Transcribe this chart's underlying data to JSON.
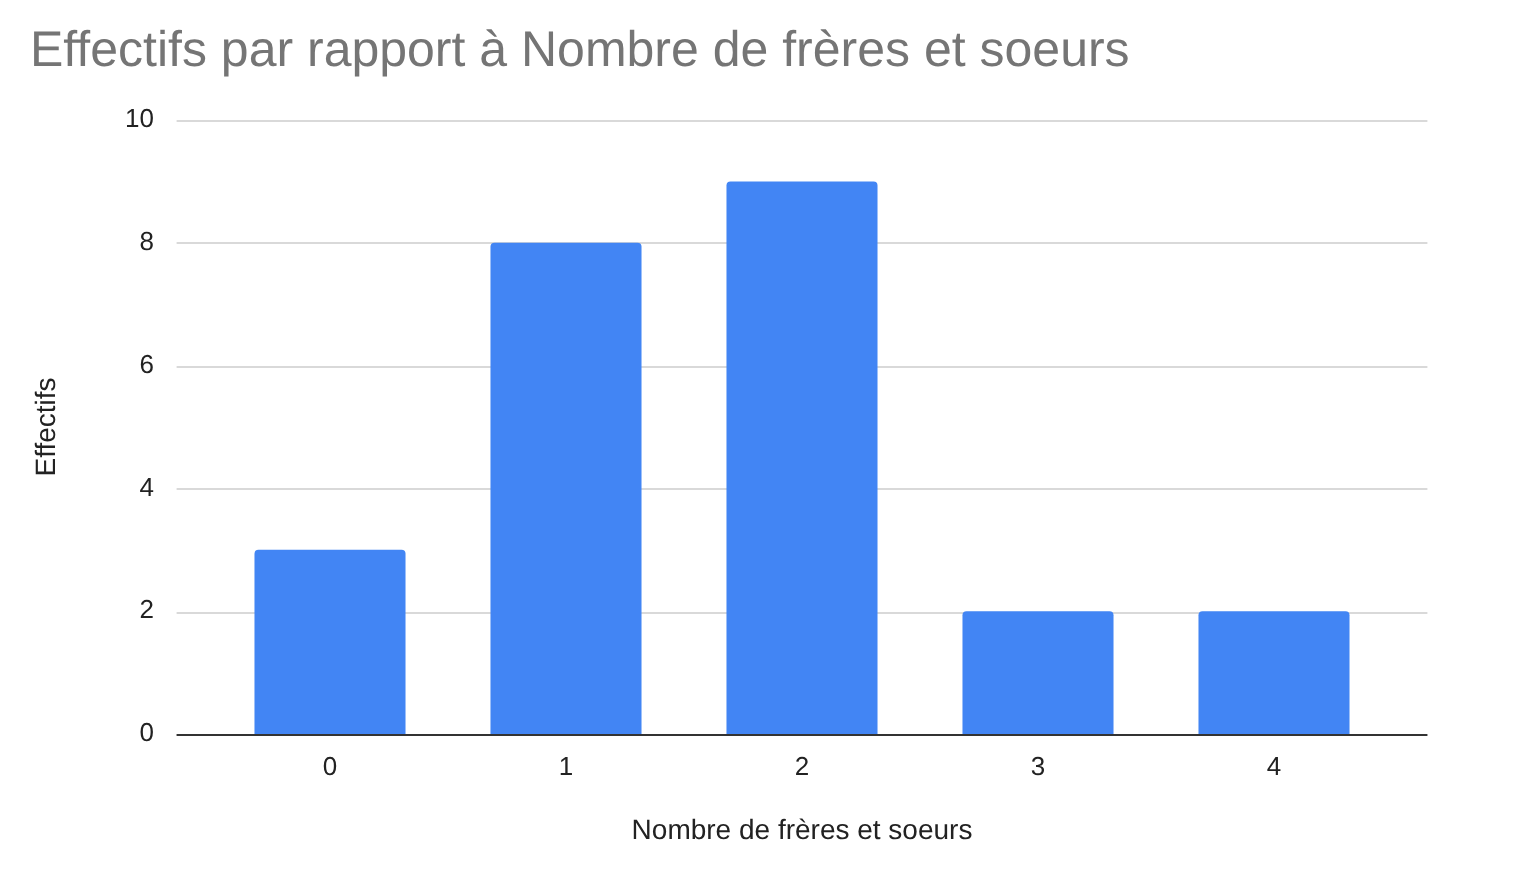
{
  "chart_data": {
    "type": "bar",
    "title": "Effectifs par rapport à Nombre de frères et soeurs",
    "xlabel": "Nombre de frères et soeurs",
    "ylabel": "Effectifs",
    "categories": [
      "0",
      "1",
      "2",
      "3",
      "4"
    ],
    "values": [
      3,
      8,
      9,
      2,
      2
    ],
    "color": "#4285f4",
    "ylim": [
      0,
      10
    ],
    "yticks": [
      0,
      2,
      4,
      6,
      8,
      10
    ],
    "grid": true
  }
}
